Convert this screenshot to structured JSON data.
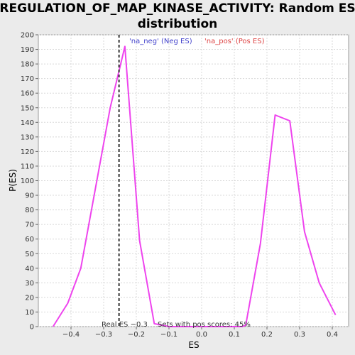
{
  "chart_data": {
    "type": "line",
    "title_line1": "REGULATION_OF_MAP_KINASE_ACTIVITY: Random ES",
    "title_line2": "distribution",
    "xlabel": "ES",
    "ylabel": "P(ES)",
    "xlim": [
      -0.5,
      0.45
    ],
    "ylim": [
      0,
      200
    ],
    "x_ticks": [
      -0.4,
      -0.3,
      -0.2,
      -0.1,
      0.0,
      0.1,
      0.2,
      0.3,
      0.4
    ],
    "x_tick_labels": [
      "−0.4",
      "−0.3",
      "−0.2",
      "−0.1",
      "0.0",
      "0.1",
      "0.2",
      "0.3",
      "0.4"
    ],
    "y_ticks": [
      0,
      10,
      20,
      30,
      40,
      50,
      60,
      70,
      80,
      90,
      100,
      110,
      120,
      130,
      140,
      150,
      160,
      170,
      180,
      190,
      200
    ],
    "grid": true,
    "series": [
      {
        "color": "#ee44ee",
        "x": [
          -0.455,
          -0.41,
          -0.37,
          -0.325,
          -0.28,
          -0.235,
          -0.19,
          -0.145,
          -0.1,
          -0.055,
          -0.01,
          0.035,
          0.08,
          0.125,
          0.135,
          0.18,
          0.225,
          0.27,
          0.315,
          0.36,
          0.41
        ],
        "y": [
          0,
          16,
          40,
          95,
          150,
          192,
          59,
          2,
          0,
          0,
          0,
          0,
          0,
          0,
          1,
          57,
          145,
          141,
          65,
          30,
          8
        ]
      }
    ],
    "real_es": {
      "x": -0.253,
      "color": "#333333"
    },
    "legend": [
      {
        "label": "'na_neg' (Neg ES)",
        "color": "#4444cc"
      },
      {
        "label": "'na_pos' (Pos ES)",
        "color": "#dd4444"
      }
    ],
    "annotations": {
      "real_es_label": "Real ES −0.3",
      "pos_scores_label": "Sets with pos scores: 45%"
    },
    "colors": {
      "background": "#ebebeb",
      "plot_bg": "#ffffff",
      "grid": "#d8d8d8"
    }
  }
}
